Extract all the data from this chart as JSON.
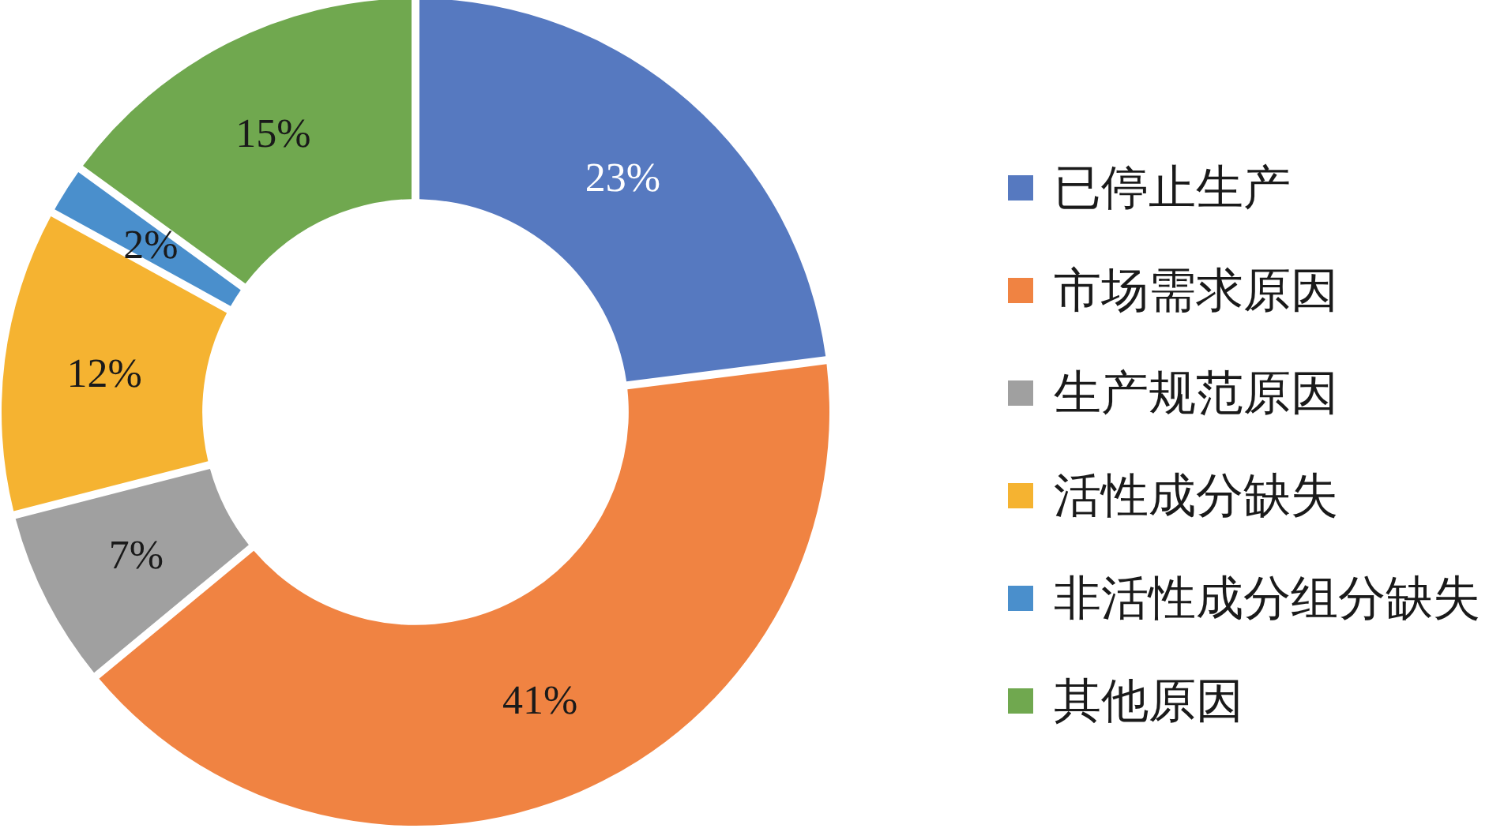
{
  "chart_data": {
    "type": "donut",
    "categories": [
      "已停止生产",
      "市场需求原因",
      "生产规范原因",
      "活性成分缺失",
      "非活性成分组分缺失",
      "其他原因"
    ],
    "values": [
      23,
      41,
      7,
      12,
      2,
      15
    ],
    "value_labels": [
      "23%",
      "41%",
      "7%",
      "12%",
      "2%",
      "15%"
    ],
    "colors": [
      "#5679c0",
      "#f08342",
      "#a0a0a0",
      "#f5b331",
      "#4a8fcc",
      "#70a84f"
    ],
    "legend": "right"
  }
}
